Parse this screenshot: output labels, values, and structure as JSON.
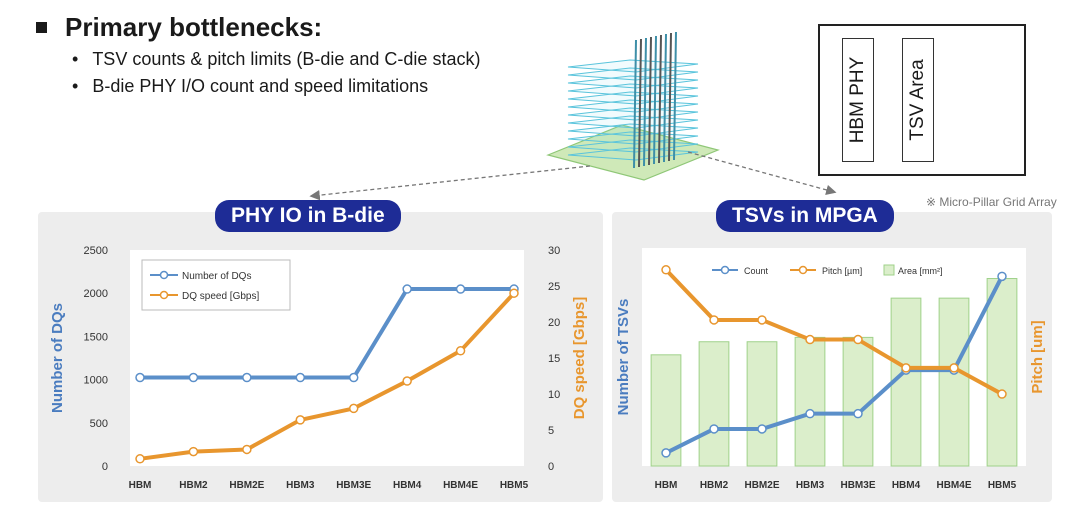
{
  "heading": "Primary bottlenecks:",
  "bullets": [
    "TSV counts & pitch limits (B-die and C-die stack)",
    "B-die PHY I/O count and speed limitations"
  ],
  "legend_box": {
    "items": [
      "HBM PHY",
      "TSV Area"
    ]
  },
  "note": "※ Micro-Pillar Grid Array",
  "colors": {
    "blue_line": "#5b8fc9",
    "orange_line": "#e8962e",
    "area_fill": "#dbeecb",
    "area_stroke": "#9fd18a",
    "pill": "#1e2c96"
  },
  "chart_data": [
    {
      "type": "line",
      "title": "PHY IO in B-die",
      "categories": [
        "HBM",
        "HBM2",
        "HBM2E",
        "HBM3",
        "HBM3E",
        "HBM4",
        "HBM4E",
        "HBM5"
      ],
      "ylabel": "Number of DQs",
      "y2label": "DQ speed [Gbps]",
      "ylim": [
        0,
        2500
      ],
      "y2lim": [
        0,
        30
      ],
      "yticks": [
        "0",
        "500",
        "1000",
        "1500",
        "2000",
        "2500"
      ],
      "y2ticks": [
        "0",
        "5",
        "10",
        "15",
        "20",
        "25",
        "30"
      ],
      "legend": "top-left",
      "series": [
        {
          "name": "Number of DQs",
          "axis": "left",
          "values": [
            1024,
            1024,
            1024,
            1024,
            1024,
            2048,
            2048,
            2048
          ]
        },
        {
          "name": "DQ speed [Gbps]",
          "axis": "right",
          "values": [
            1,
            2,
            2.3,
            6.4,
            8,
            11.8,
            16,
            24
          ]
        }
      ]
    },
    {
      "type": "line",
      "title": "TSVs in MPGA",
      "categories": [
        "HBM",
        "HBM2",
        "HBM2E",
        "HBM3",
        "HBM3E",
        "HBM4",
        "HBM4E",
        "HBM5"
      ],
      "ylabel": "Number of TSVs",
      "y2label": "Pitch [um]",
      "ylim": [
        0,
        100
      ],
      "y2lim": [
        0,
        100
      ],
      "legend": "top",
      "series": [
        {
          "name": "Count",
          "axis": "left",
          "style": "line",
          "values": [
            6,
            17,
            17,
            24,
            24,
            44,
            44,
            87
          ]
        },
        {
          "name": "Pitch [µm]",
          "axis": "right",
          "style": "line",
          "values": [
            90,
            67,
            67,
            58,
            58,
            45,
            45,
            33
          ]
        },
        {
          "name": "Area [mm²]",
          "axis": "left",
          "style": "bar",
          "values": [
            51,
            57,
            57,
            59,
            59,
            77,
            77,
            86
          ]
        }
      ]
    }
  ]
}
